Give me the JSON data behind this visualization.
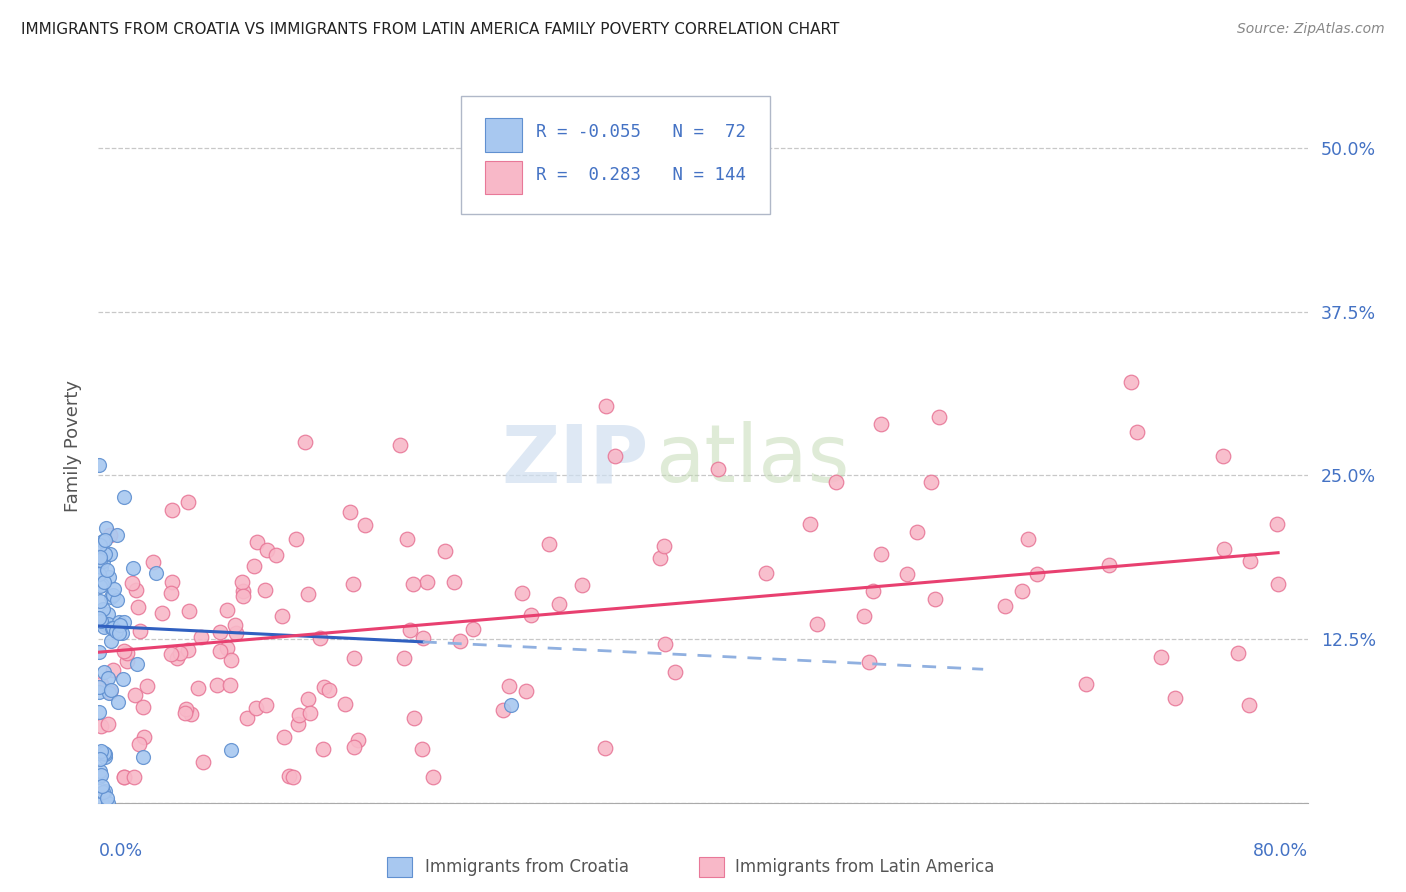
{
  "title": "IMMIGRANTS FROM CROATIA VS IMMIGRANTS FROM LATIN AMERICA FAMILY POVERTY CORRELATION CHART",
  "source": "Source: ZipAtlas.com",
  "ylabel": "Family Poverty",
  "yticks": [
    0.0,
    0.125,
    0.25,
    0.375,
    0.5
  ],
  "ytick_labels": [
    "",
    "12.5%",
    "25.0%",
    "37.5%",
    "50.0%"
  ],
  "xlim": [
    0.0,
    0.82
  ],
  "ylim": [
    0.0,
    0.545
  ],
  "croatia_R": -0.055,
  "croatia_N": 72,
  "latin_R": 0.283,
  "latin_N": 144,
  "croatia_color": "#a8c8f0",
  "latin_color": "#f8b8c8",
  "croatia_edge": "#6090d0",
  "latin_edge": "#e87898",
  "trend_croatia_solid_color": "#3060c0",
  "trend_croatia_dash_color": "#90b0e0",
  "trend_latin_color": "#e84070",
  "watermark_zip": "ZIP",
  "watermark_atlas": "atlas",
  "title_color": "#222222",
  "axis_label_color": "#4472c4",
  "grid_color": "#c8c8c8",
  "source_color": "#888888",
  "ylabel_color": "#555555",
  "bottom_label_color": "#555555",
  "legend_edge_color": "#b0b8c8",
  "legend_bg": "#ffffff",
  "trend_croatia_intercept": 0.135,
  "trend_croatia_slope": -0.055,
  "trend_croatia_solid_end": 0.22,
  "trend_croatia_dash_end": 0.6,
  "trend_latin_intercept": 0.115,
  "trend_latin_slope": 0.095
}
